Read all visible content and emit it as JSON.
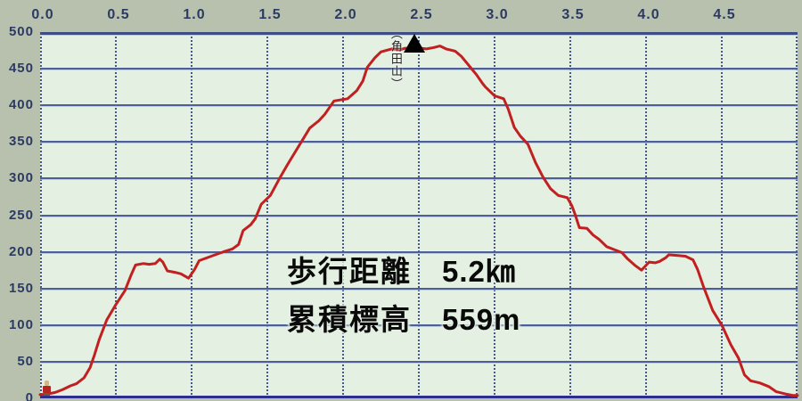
{
  "stats": {
    "walking_distance_label": "歩行距離",
    "walking_distance_value": "5.2㎞",
    "cumulative_elevation_label": "累積標高",
    "cumulative_elevation_value": "559m"
  },
  "colors": {
    "outer_background": "#b7c1ad",
    "plot_background": "#e4f0e2",
    "grid_solid": "#4e5e96",
    "grid_dotted": "#46568e",
    "border_top": "#3d4d85",
    "border_bottom": "#2e2e8e",
    "axis_text": "#2c3a63",
    "line": "#c22020",
    "stats_text": "#0a0a0a",
    "summit_text": "#222222"
  },
  "chart_data": {
    "type": "line",
    "x_range": [
      0,
      5.0
    ],
    "y_range": [
      0,
      500
    ],
    "x_ticks": [
      {
        "value": 0.0,
        "label": "0.0"
      },
      {
        "value": 0.5,
        "label": "0.5"
      },
      {
        "value": 1.0,
        "label": "1.0"
      },
      {
        "value": 1.5,
        "label": "1.5"
      },
      {
        "value": 2.0,
        "label": "2.0"
      },
      {
        "value": 2.5,
        "label": "2.5"
      },
      {
        "value": 3.0,
        "label": "3.0"
      },
      {
        "value": 3.5,
        "label": "3.5"
      },
      {
        "value": 4.0,
        "label": "4.0"
      },
      {
        "value": 4.5,
        "label": "4.5"
      }
    ],
    "y_ticks": [
      {
        "value": 500,
        "label": "500"
      },
      {
        "value": 450,
        "label": "450"
      },
      {
        "value": 400,
        "label": "400"
      },
      {
        "value": 350,
        "label": "350"
      },
      {
        "value": 300,
        "label": "300"
      },
      {
        "value": 250,
        "label": "250"
      },
      {
        "value": 200,
        "label": "200"
      },
      {
        "value": 150,
        "label": "150"
      },
      {
        "value": 100,
        "label": "100"
      },
      {
        "value": 50,
        "label": "50"
      },
      {
        "value": 0,
        "label": "0"
      }
    ],
    "x_gridlines_km": [
      0,
      0.5,
      1.0,
      1.5,
      2.0,
      2.5,
      3.0,
      3.5,
      4.0,
      4.5,
      5.0
    ],
    "grid_style": {
      "horizontal": "solid",
      "vertical": "dotted"
    },
    "line_color": "#c22020",
    "series": [
      {
        "name": "elevation-profile",
        "points": [
          [
            0.0,
            5
          ],
          [
            0.05,
            6
          ],
          [
            0.1,
            8
          ],
          [
            0.15,
            12
          ],
          [
            0.2,
            17
          ],
          [
            0.24,
            20
          ],
          [
            0.29,
            28
          ],
          [
            0.33,
            42
          ],
          [
            0.36,
            60
          ],
          [
            0.39,
            80
          ],
          [
            0.44,
            107
          ],
          [
            0.5,
            128
          ],
          [
            0.56,
            147
          ],
          [
            0.6,
            168
          ],
          [
            0.63,
            182
          ],
          [
            0.68,
            184
          ],
          [
            0.72,
            183
          ],
          [
            0.76,
            184
          ],
          [
            0.79,
            190
          ],
          [
            0.81,
            186
          ],
          [
            0.84,
            174
          ],
          [
            0.89,
            172
          ],
          [
            0.93,
            170
          ],
          [
            0.98,
            164
          ],
          [
            1.02,
            176
          ],
          [
            1.05,
            188
          ],
          [
            1.13,
            194
          ],
          [
            1.21,
            200
          ],
          [
            1.27,
            204
          ],
          [
            1.31,
            210
          ],
          [
            1.34,
            229
          ],
          [
            1.39,
            237
          ],
          [
            1.42,
            245
          ],
          [
            1.46,
            265
          ],
          [
            1.52,
            277
          ],
          [
            1.58,
            300
          ],
          [
            1.63,
            318
          ],
          [
            1.68,
            335
          ],
          [
            1.73,
            352
          ],
          [
            1.78,
            369
          ],
          [
            1.84,
            379
          ],
          [
            1.88,
            388
          ],
          [
            1.91,
            397
          ],
          [
            1.94,
            406
          ],
          [
            2.03,
            409
          ],
          [
            2.09,
            420
          ],
          [
            2.13,
            433
          ],
          [
            2.16,
            452
          ],
          [
            2.21,
            465
          ],
          [
            2.25,
            473
          ],
          [
            2.32,
            477
          ],
          [
            2.38,
            476
          ],
          [
            2.41,
            478
          ],
          [
            2.45,
            477
          ],
          [
            2.47,
            480
          ],
          [
            2.51,
            478
          ],
          [
            2.55,
            477
          ],
          [
            2.6,
            479
          ],
          [
            2.64,
            481
          ],
          [
            2.68,
            477
          ],
          [
            2.74,
            474
          ],
          [
            2.78,
            467
          ],
          [
            2.82,
            457
          ],
          [
            2.84,
            452
          ],
          [
            2.88,
            442
          ],
          [
            2.92,
            430
          ],
          [
            2.94,
            425
          ],
          [
            3.0,
            413
          ],
          [
            3.06,
            409
          ],
          [
            3.09,
            395
          ],
          [
            3.13,
            370
          ],
          [
            3.17,
            358
          ],
          [
            3.22,
            347
          ],
          [
            3.27,
            322
          ],
          [
            3.32,
            302
          ],
          [
            3.37,
            286
          ],
          [
            3.42,
            277
          ],
          [
            3.48,
            274
          ],
          [
            3.51,
            263
          ],
          [
            3.53,
            252
          ],
          [
            3.56,
            233
          ],
          [
            3.61,
            232
          ],
          [
            3.65,
            223
          ],
          [
            3.69,
            217
          ],
          [
            3.74,
            207
          ],
          [
            3.79,
            203
          ],
          [
            3.84,
            199
          ],
          [
            3.88,
            190
          ],
          [
            3.93,
            181
          ],
          [
            3.97,
            175
          ],
          [
            4.02,
            186
          ],
          [
            4.06,
            185
          ],
          [
            4.09,
            187
          ],
          [
            4.13,
            192
          ],
          [
            4.15,
            196
          ],
          [
            4.21,
            195
          ],
          [
            4.26,
            194
          ],
          [
            4.31,
            189
          ],
          [
            4.34,
            176
          ],
          [
            4.38,
            152
          ],
          [
            4.44,
            120
          ],
          [
            4.5,
            100
          ],
          [
            4.56,
            73
          ],
          [
            4.61,
            55
          ],
          [
            4.65,
            32
          ],
          [
            4.69,
            24
          ],
          [
            4.75,
            21
          ],
          [
            4.81,
            16
          ],
          [
            4.86,
            9
          ],
          [
            4.92,
            6
          ],
          [
            4.97,
            4
          ],
          [
            5.0,
            4
          ]
        ]
      }
    ],
    "annotations": {
      "summit": {
        "label": "（角田山）",
        "km": 2.47,
        "elevation_m": 482,
        "marker": "black-triangle"
      },
      "start": {
        "km": 0.0,
        "elevation_m": 5,
        "marker": "hiker-icon"
      }
    },
    "overlay_text": [
      "歩行距離　5.2㎞",
      "累積標高　559m"
    ],
    "legend": "none",
    "title": ""
  }
}
